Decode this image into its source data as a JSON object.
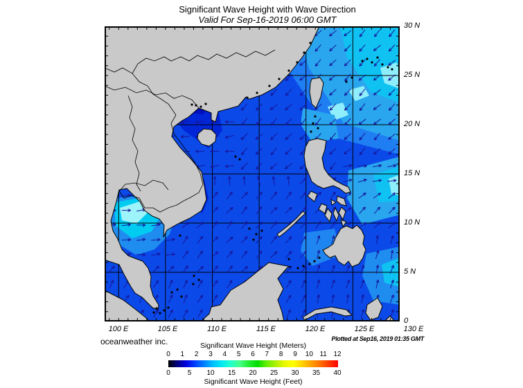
{
  "header": {
    "title": "Significant Wave Height with Wave Direction",
    "subtitle": "Valid For Sep-16-2019 06:00 GMT"
  },
  "credits": {
    "source": "oceanweather inc.",
    "plotted": "Plotted at Sep16, 2019 01:35 GMT"
  },
  "map": {
    "x_labels": [
      "100 E",
      "105 E",
      "110 E",
      "115 E",
      "120 E",
      "125 E",
      "130 E"
    ],
    "y_labels": [
      "30 N",
      "25 N",
      "20 N",
      "15 N",
      "10 N",
      "5 N",
      "0"
    ],
    "lon_range": [
      98.5,
      130
    ],
    "lat_range": [
      0,
      30
    ],
    "grid_interval_deg": 5,
    "tick_interval_deg": 1,
    "colors": {
      "land": "#c9c9c9",
      "coastline": "#000000",
      "grid": "#000000",
      "arrow": "#16169a",
      "ocean_base": "#0b49e8",
      "ocean_palette": [
        "#000fbe",
        "#0026d8",
        "#0b49e8",
        "#1f7ef2",
        "#1f85f0",
        "#1f8cf0",
        "#29a6ee",
        "#10c2f2",
        "#00ccf2",
        "#8feefb",
        "#9ef4fb"
      ]
    },
    "wave_direction_regions": [
      {
        "name": "gulf-of-tonkin-westward",
        "lat_min": 15.5,
        "lon_max": 113,
        "dir_deg": 262
      },
      {
        "name": "east-of-luzon-eastward",
        "lon_min": 123.5,
        "lat_min": 13,
        "lat_max": 16,
        "dir_deg": 80
      },
      {
        "name": "northern-sector-southwestward",
        "lat_min": 15.5,
        "dir_deg": 225
      },
      {
        "name": "central-convergence-northward",
        "lat_min": 13.5,
        "lat_max": 15.5,
        "lon_max": 119,
        "dir_deg": 352
      },
      {
        "name": "gulf-of-thailand-eastward",
        "lon_max": 106,
        "lat_min": 5.5,
        "lat_max": 13.5,
        "dir_deg": 87
      },
      {
        "name": "philippine-sea-northeastward",
        "lon_min": 123.5,
        "lat_min": 9,
        "lat_max": 13,
        "dir_deg": 50
      },
      {
        "name": "celebes-sulu-northward",
        "lon_min": 121,
        "lat_max": 9,
        "dir_deg": 15
      },
      {
        "name": "far-south-north-northeastward",
        "lat_max": 5,
        "dir_deg": 30
      },
      {
        "name": "south-china-sea-northeastward",
        "dir_deg": 42
      }
    ]
  },
  "legend": {
    "title_meters": "Significant Wave Height (Meters)",
    "title_feet": "Significant Wave Height (Feet)",
    "meters_ticks": [
      "0",
      "1",
      "2",
      "3",
      "4",
      "5",
      "6",
      "7",
      "8",
      "9",
      "10",
      "11",
      "12"
    ],
    "feet_ticks": [
      "0",
      "5",
      "10",
      "15",
      "20",
      "25",
      "30",
      "35",
      "40"
    ],
    "gradient": [
      "#000000",
      "#00007f",
      "#0000e0",
      "#0040ff",
      "#0080ff",
      "#00c0ff",
      "#00e8f0",
      "#22ffcc",
      "#44ff88",
      "#22ee33",
      "#00dd00",
      "#66ee00",
      "#aaf000",
      "#e8f800",
      "#ffff00",
      "#ffd000",
      "#ffa000",
      "#ff7000",
      "#ff3800",
      "#ff0000"
    ]
  }
}
